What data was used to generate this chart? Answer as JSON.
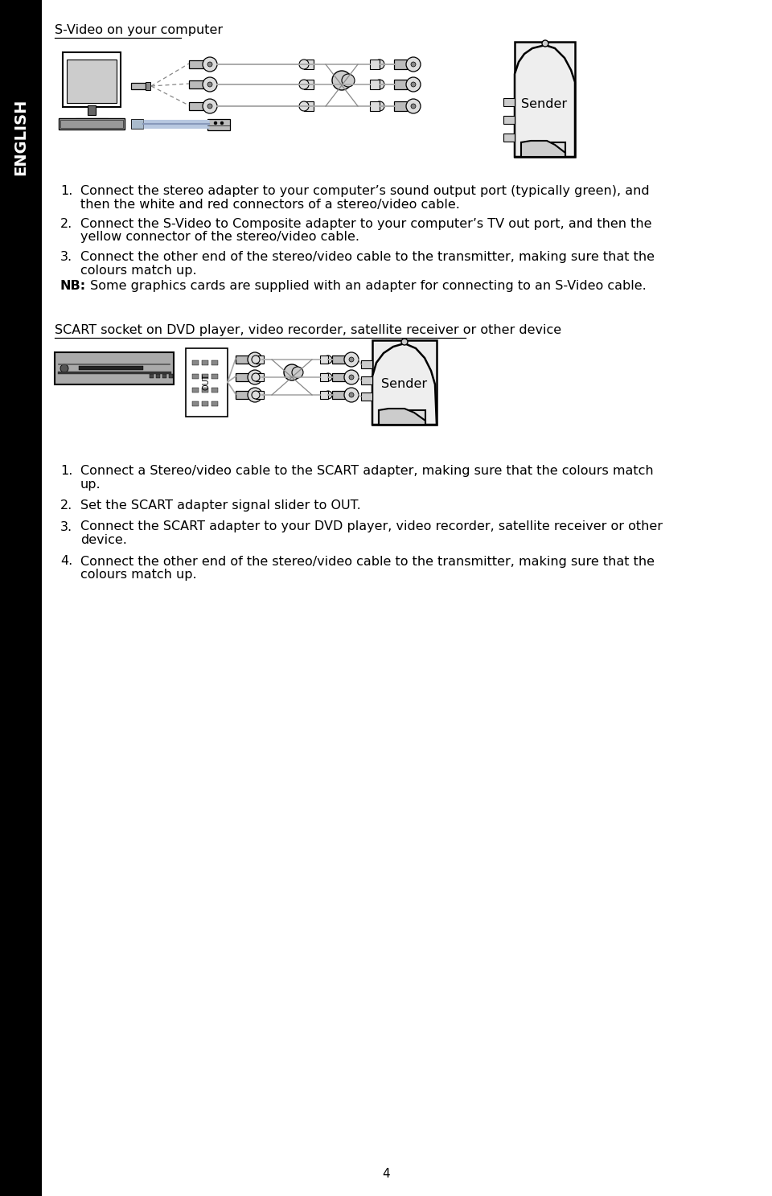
{
  "background_color": "#ffffff",
  "page_number": "4",
  "sidebar_color": "#000000",
  "sidebar_text": "ENGLISH",
  "sidebar_text_color": "#ffffff",
  "section1_title": "S-Video on your computer",
  "section1_steps": [
    [
      "Connect the stereo adapter to your computer’s sound output port (typically green), and",
      "then the white and red connectors of a stereo/video cable."
    ],
    [
      "Connect the S-Video to Composite adapter to your computer’s TV out port, and then the",
      "yellow connector of the stereo/video cable."
    ],
    [
      "Connect the other end of the stereo/video cable to the transmitter, making sure that the",
      "colours match up."
    ]
  ],
  "nb_bold": "NB:",
  "nb_rest": " Some graphics cards are supplied with an adapter for connecting to an S-Video cable.",
  "section2_title": "SCART socket on DVD player, video recorder, satellite receiver or other device",
  "section2_steps": [
    [
      "Connect a Stereo/video cable to the SCART adapter, making sure that the colours match",
      "up."
    ],
    [
      "Set the SCART adapter signal slider to OUT."
    ],
    [
      "Connect the SCART adapter to your DVD player, video recorder, satellite receiver or other",
      "device."
    ],
    [
      "Connect the other end of the stereo/video cable to the transmitter, making sure that the",
      "colours match up."
    ]
  ],
  "font_size_body": 11.5,
  "font_size_title": 11.5,
  "font_size_nb": 11.5,
  "font_size_page": 11,
  "font_size_sidebar": 14
}
